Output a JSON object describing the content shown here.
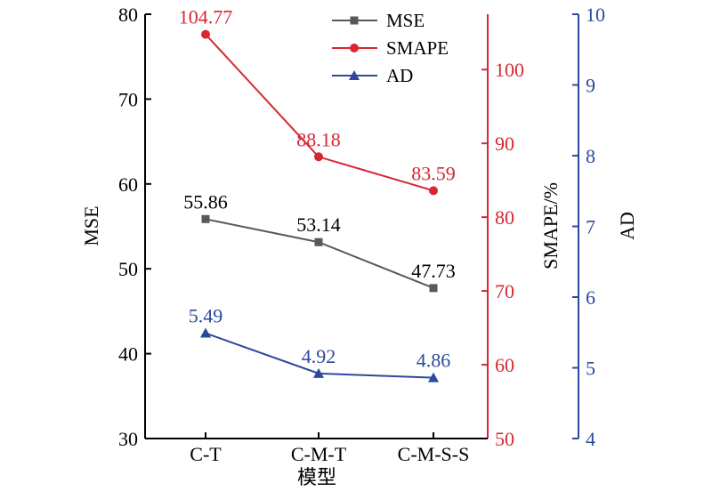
{
  "chart_data": {
    "type": "line",
    "title": "",
    "categories": [
      "C-T",
      "C-M-T",
      "C-M-S-S"
    ],
    "xlabel": "模型",
    "axes": {
      "left": {
        "label": "MSE",
        "ylim": [
          30,
          80
        ],
        "ticks": [
          30,
          40,
          50,
          60,
          70,
          80
        ],
        "color": "#000000"
      },
      "right1": {
        "label": "SMAPE/%",
        "ylim": [
          50,
          107.5
        ],
        "ticks": [
          50,
          60,
          70,
          80,
          90,
          100
        ],
        "color": "#d62733"
      },
      "right2": {
        "label": "AD",
        "ylim": [
          4,
          10
        ],
        "ticks": [
          4,
          5,
          6,
          7,
          8,
          9,
          10
        ],
        "color": "#2b4a9b"
      }
    },
    "series": [
      {
        "name": "MSE",
        "axis": "left",
        "values": [
          55.86,
          53.14,
          47.73
        ],
        "labels": [
          "55.86",
          "53.14",
          "47.73"
        ],
        "color": "#595959",
        "marker": "square",
        "label_color": "#000000"
      },
      {
        "name": "SMAPE",
        "axis": "right1",
        "values": [
          104.77,
          88.18,
          83.59
        ],
        "labels": [
          "104.77",
          "88.18",
          "83.59"
        ],
        "color": "#d62733",
        "marker": "circle",
        "label_color": "#d62733"
      },
      {
        "name": "AD",
        "axis": "right2",
        "values": [
          5.49,
          4.92,
          4.86
        ],
        "labels": [
          "5.49",
          "4.92",
          "4.86"
        ],
        "color": "#2b4a9b",
        "marker": "triangle",
        "label_color": "#2b4a9b"
      }
    ],
    "legend": {
      "position": "top-right",
      "entries": [
        "MSE",
        "SMAPE",
        "AD"
      ]
    },
    "grid": false
  }
}
